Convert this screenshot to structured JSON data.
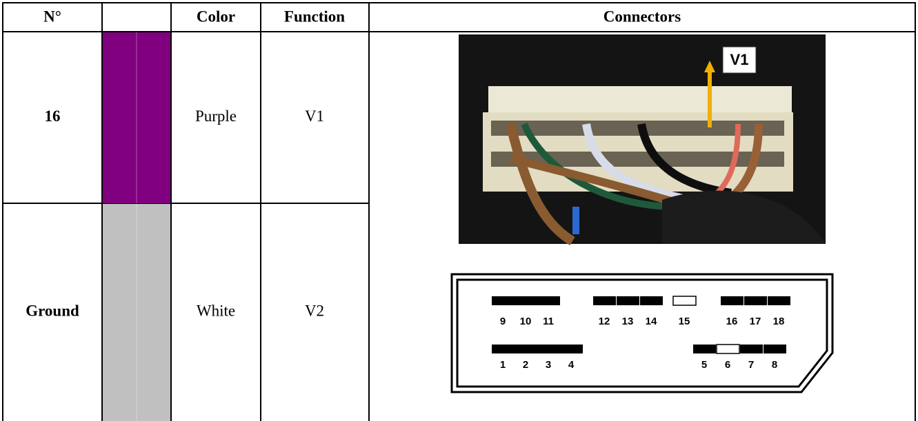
{
  "header": {
    "number": "N°",
    "color": "Color",
    "function": "Function",
    "connectors": "Connectors"
  },
  "rows": [
    {
      "number": "16",
      "swatch": "#800080",
      "color_name": "Purple",
      "function": "V1"
    },
    {
      "number": "Ground",
      "swatch": "#c0c0c0",
      "color_name": "White",
      "function": "V2"
    }
  ],
  "connector": {
    "photo_label": "V1",
    "top_pins": [
      9,
      10,
      11,
      12,
      13,
      14,
      15,
      16,
      17,
      18
    ],
    "bottom_pins": [
      1,
      2,
      3,
      4,
      5,
      6,
      7,
      8
    ],
    "empty_pins": [
      15,
      6
    ]
  }
}
